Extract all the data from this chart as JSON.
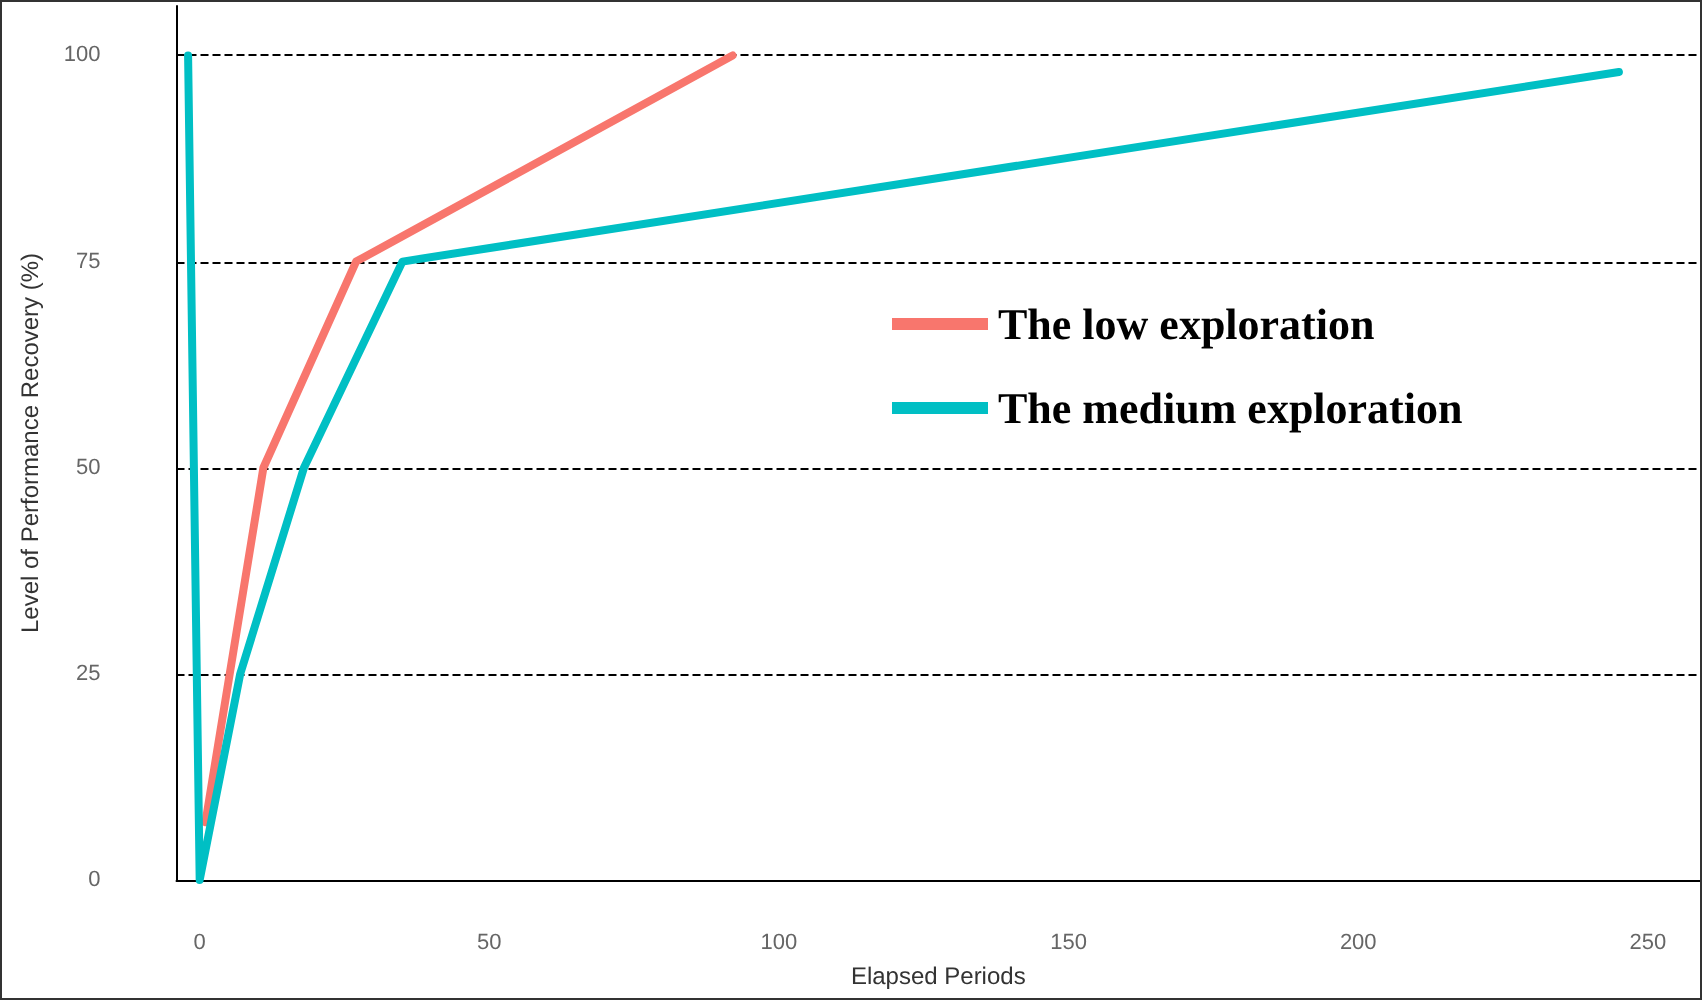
{
  "chart_data": {
    "type": "line",
    "xlabel": "Elapsed Periods",
    "ylabel": "Level of Performance Recovery (%)",
    "xlim": [
      -4,
      259
    ],
    "xticks": [
      0,
      50,
      100,
      150,
      200,
      250
    ],
    "ylim": [
      0,
      106
    ],
    "yticks": [
      0,
      25,
      50,
      75,
      100
    ],
    "grid": "y",
    "legend": "right",
    "marker": "none",
    "line_style": "solid",
    "series": [
      {
        "name": "The low exploration",
        "color": "#f8766d",
        "x": [
          1,
          11,
          27,
          92
        ],
        "values": [
          7,
          50,
          75,
          100
        ]
      },
      {
        "name": "The medium exploration",
        "color": "#00bfc4",
        "x": [
          -2,
          0,
          7,
          18,
          35,
          245
        ],
        "values": [
          100,
          0,
          25,
          50,
          75,
          98
        ]
      }
    ]
  }
}
